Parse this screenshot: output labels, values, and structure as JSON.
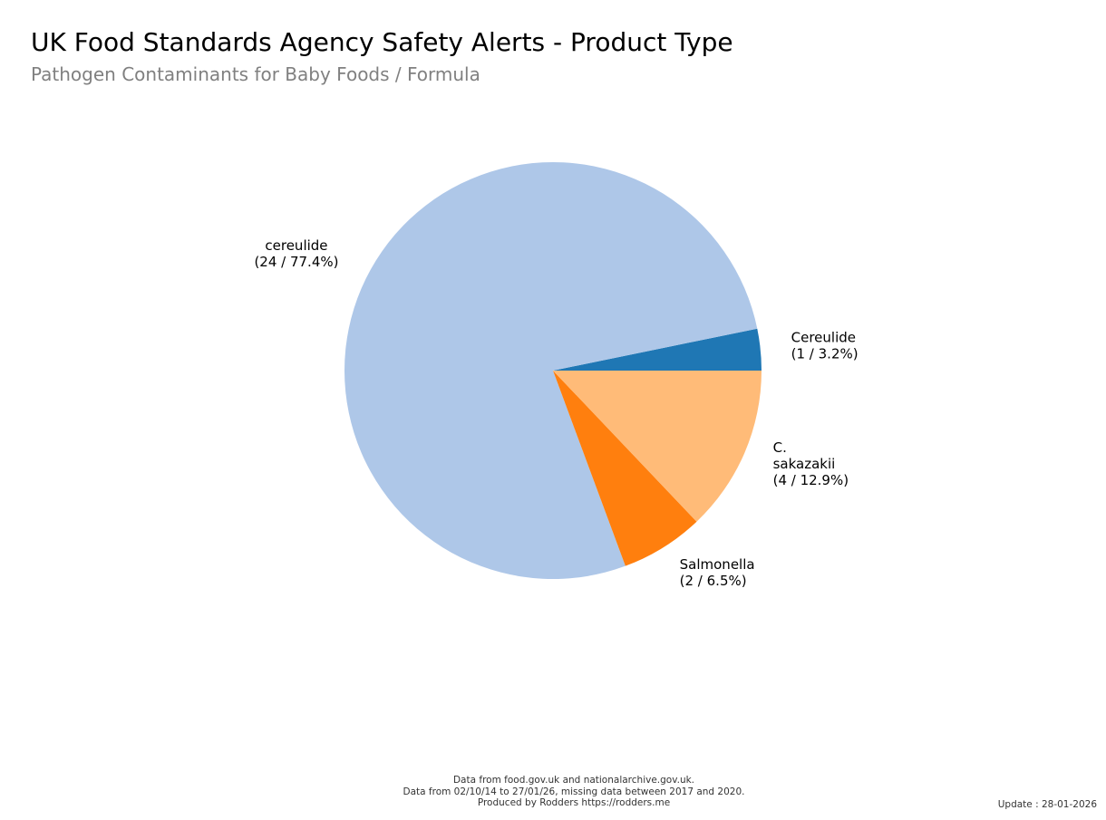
{
  "chart_data": {
    "type": "pie",
    "title": "UK Food Standards Agency Safety Alerts - Product Type",
    "subtitle": "Pathogen Contaminants for Baby Foods / Formula",
    "slices": [
      {
        "label_lines": [
          "Cereulide"
        ],
        "count": 1,
        "percent": 3.2,
        "value_text": "(1 / 3.2%)",
        "color": "#1f77b4"
      },
      {
        "label_lines": [
          "cereulide"
        ],
        "count": 24,
        "percent": 77.4,
        "value_text": "(24 / 77.4%)",
        "color": "#aec7e8"
      },
      {
        "label_lines": [
          "Salmonella"
        ],
        "count": 2,
        "percent": 6.5,
        "value_text": "(2 / 6.5%)",
        "color": "#ff7f0e"
      },
      {
        "label_lines": [
          "C.",
          "sakazakii"
        ],
        "count": 4,
        "percent": 12.9,
        "value_text": "(4 / 12.9%)",
        "color": "#ffbb78"
      }
    ]
  },
  "footer": {
    "line1": "Data from food.gov.uk and nationalarchive.gov.uk.",
    "line2": "Data from 02/10/14 to 27/01/26, missing data between 2017 and 2020.",
    "line3": "Produced by Rodders https://rodders.me"
  },
  "update_text": "Update : 28-01-2026"
}
